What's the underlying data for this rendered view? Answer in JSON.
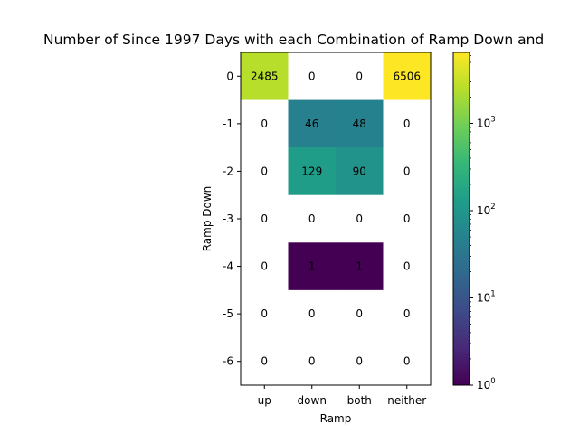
{
  "chart_data": {
    "type": "heatmap",
    "title": "Number of Since 1997 Days with each Combination of Ramp Down and",
    "xlabel": "Ramp",
    "ylabel": "Ramp Down",
    "x_categories": [
      "up",
      "down",
      "both",
      "neither"
    ],
    "y_categories": [
      "0",
      "-1",
      "-2",
      "-3",
      "-4",
      "-5",
      "-6"
    ],
    "values": [
      [
        2485,
        0,
        0,
        6506
      ],
      [
        0,
        46,
        48,
        0
      ],
      [
        0,
        129,
        90,
        0
      ],
      [
        0,
        0,
        0,
        0
      ],
      [
        0,
        1,
        1,
        0
      ],
      [
        0,
        0,
        0,
        0
      ],
      [
        0,
        0,
        0,
        0
      ]
    ],
    "color_scale": "log",
    "colormap": "viridis",
    "zero_cells_color": "#ffffff",
    "colorbar": {
      "range": [
        1,
        6506
      ],
      "major_ticks": [
        {
          "value": 1,
          "base": "10",
          "exp": "0"
        },
        {
          "value": 10,
          "base": "10",
          "exp": "1"
        },
        {
          "value": 100,
          "base": "10",
          "exp": "2"
        },
        {
          "value": 1000,
          "base": "10",
          "exp": "3"
        }
      ]
    },
    "grid": false,
    "legend": "none"
  }
}
